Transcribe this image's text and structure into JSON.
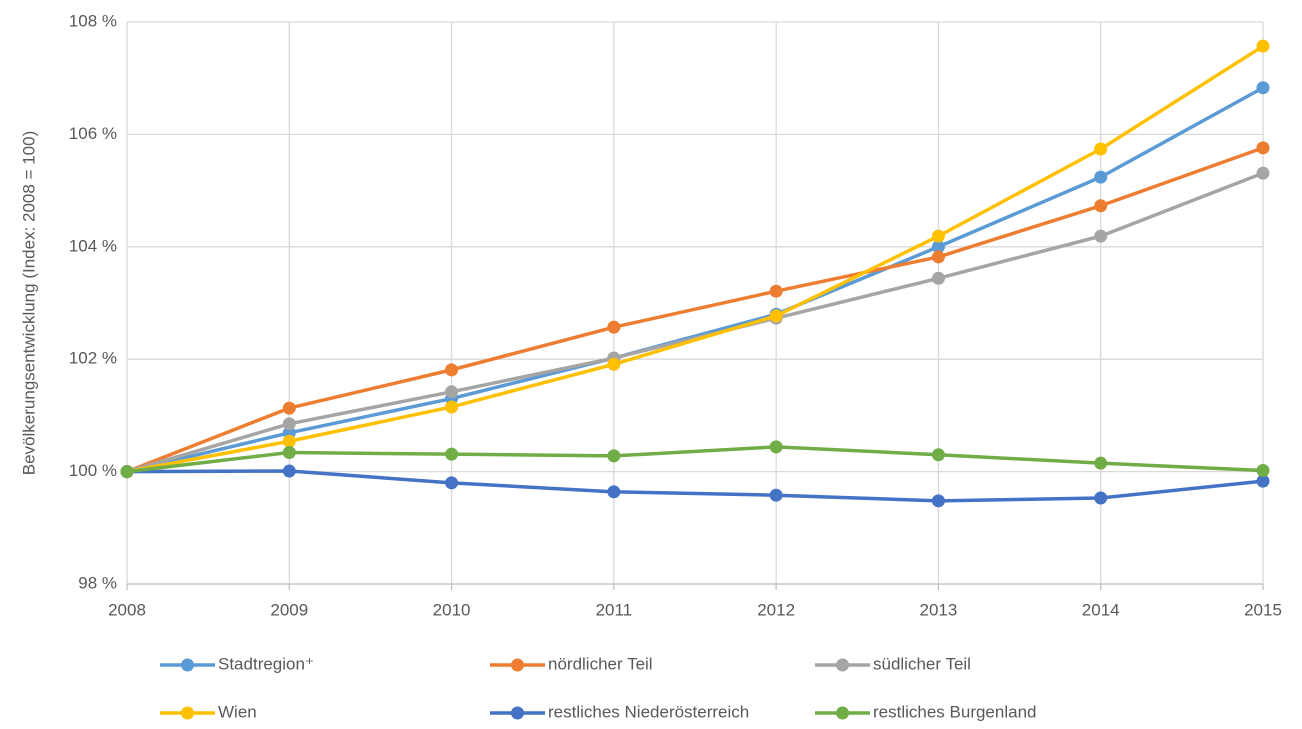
{
  "chart_data": {
    "type": "line",
    "ylabel": "Bevölkerungsentwicklung (Index: 2008 = 100)",
    "x": [
      2008,
      2009,
      2010,
      2011,
      2012,
      2013,
      2014,
      2015
    ],
    "xlim": [
      2008,
      2015
    ],
    "xticks": [
      2008,
      2009,
      2010,
      2011,
      2012,
      2013,
      2014,
      2015
    ],
    "ylim": [
      98,
      108
    ],
    "yticks": [
      {
        "value": 98,
        "label": "98 %"
      },
      {
        "value": 100,
        "label": "100 %"
      },
      {
        "value": 102,
        "label": "102 %"
      },
      {
        "value": 104,
        "label": "104 %"
      },
      {
        "value": 106,
        "label": "106 %"
      },
      {
        "value": 108,
        "label": "108 %"
      }
    ],
    "grid": true,
    "legend": "bottom",
    "series": [
      {
        "name": "Stadtregion⁺",
        "color": "#5b9bd5",
        "values": [
          100,
          100.69,
          101.3,
          102.02,
          102.8,
          104.0,
          105.24,
          106.83
        ]
      },
      {
        "name": "nördlicher Teil",
        "color": "#ed7d31",
        "values": [
          100,
          101.13,
          101.81,
          102.57,
          103.21,
          103.82,
          104.73,
          105.76
        ]
      },
      {
        "name": "südlicher Teil",
        "color": "#a5a5a5",
        "values": [
          100,
          100.85,
          101.42,
          102.02,
          102.73,
          103.44,
          104.19,
          105.31
        ]
      },
      {
        "name": "Wien",
        "color": "#ffc000",
        "values": [
          100,
          100.54,
          101.15,
          101.91,
          102.77,
          104.19,
          105.74,
          107.57
        ]
      },
      {
        "name": "restliches Niederösterreich",
        "color": "#4472c4",
        "values": [
          100,
          100.01,
          99.8,
          99.64,
          99.58,
          99.48,
          99.53,
          99.83
        ]
      },
      {
        "name": "restliches Burgenland",
        "color": "#70ad47",
        "values": [
          100,
          100.34,
          100.31,
          100.28,
          100.44,
          100.3,
          100.15,
          100.02
        ]
      }
    ]
  }
}
